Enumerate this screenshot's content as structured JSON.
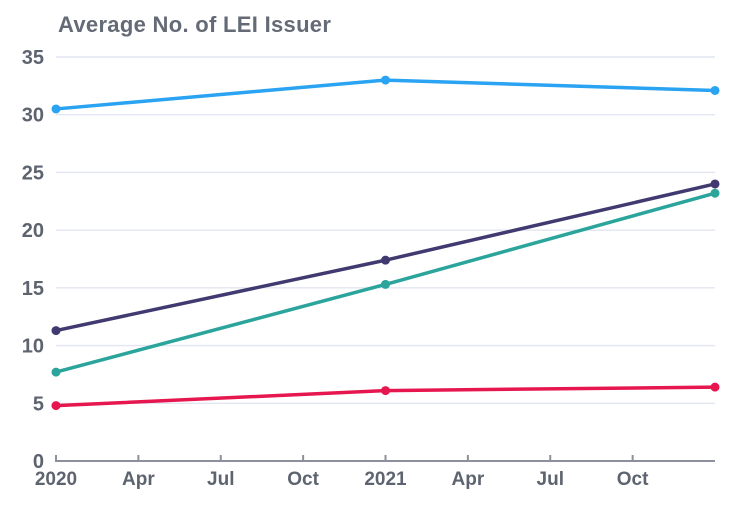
{
  "chart_data": {
    "type": "line",
    "title": "Average No. of LEI Issuer",
    "subtitle": "",
    "legend": "none",
    "grid": "horizontal-only",
    "xlabel": "",
    "ylabel": "",
    "ylim": [
      0,
      35
    ],
    "y_ticks": [
      0,
      5,
      10,
      15,
      20,
      25,
      30,
      35
    ],
    "x_axis_months_span": 24,
    "x_tick_interval_months": 3,
    "x_tick_labels": [
      "2020",
      "Apr",
      "Jul",
      "Oct",
      "2021",
      "Apr",
      "Jul",
      "Oct"
    ],
    "point_x_months": [
      0,
      12,
      24
    ],
    "series": [
      {
        "name": "sky-blue-series",
        "color": "#29a3f2",
        "values": [
          30.5,
          33.0,
          32.1
        ]
      },
      {
        "name": "indigo-series",
        "color": "#403a70",
        "values": [
          11.3,
          17.4,
          24.0
        ]
      },
      {
        "name": "teal-series",
        "color": "#2ba59b",
        "values": [
          7.7,
          15.3,
          23.2
        ]
      },
      {
        "name": "crimson-series",
        "color": "#e6174e",
        "values": [
          4.8,
          6.1,
          6.4
        ]
      }
    ],
    "colors": {
      "title_text": "#646b76",
      "tick_text": "#5d6470",
      "gridline": "#e2e6f2",
      "axis": "#8b909a",
      "background": "#ffffff"
    }
  }
}
